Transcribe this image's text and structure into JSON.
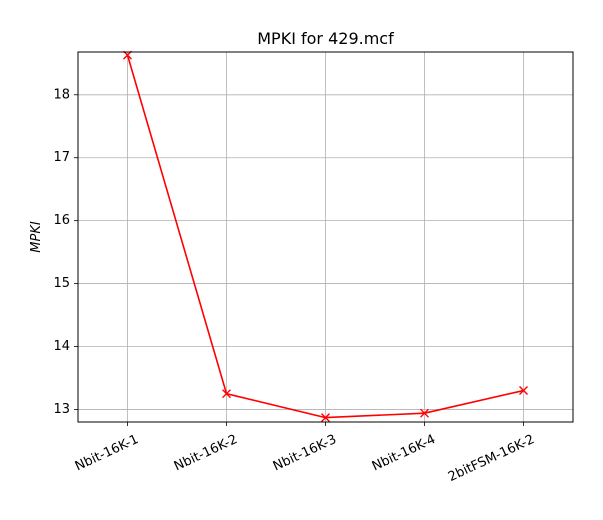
{
  "chart_data": {
    "type": "line",
    "title": "MPKI for 429.mcf",
    "xlabel": "",
    "ylabel": "MPKI",
    "categories": [
      "Nbit-16K-1",
      "Nbit-16K-2",
      "Nbit-16K-3",
      "Nbit-16K-4",
      "2bitFSM-16K-2"
    ],
    "series": [
      {
        "values": [
          18.63,
          13.25,
          12.87,
          12.94,
          13.3
        ],
        "color": "#ff0000",
        "marker": "x"
      }
    ],
    "ylim": [
      12.8,
      18.68
    ],
    "yticks": [
      13,
      14,
      15,
      16,
      17,
      18
    ],
    "grid": true,
    "xtick_rotation_deg": 25
  }
}
